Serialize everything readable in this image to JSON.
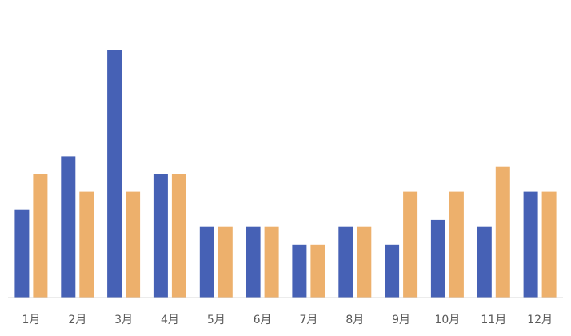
{
  "chart_data": {
    "type": "bar",
    "title": "",
    "xlabel": "",
    "ylabel": "",
    "categories": [
      "1月",
      "2月",
      "3月",
      "4月",
      "5月",
      "6月",
      "7月",
      "8月",
      "9月",
      "10月",
      "11月",
      "12月"
    ],
    "series": [
      {
        "values": [
          5,
          8,
          14,
          7,
          4,
          4,
          3,
          4,
          3,
          4.4,
          4,
          6
        ],
        "color": "#4661B5"
      },
      {
        "values": [
          7,
          6,
          6,
          7,
          4,
          4,
          3,
          4,
          6,
          6,
          7.4,
          6
        ],
        "color": "#EDB06C"
      }
    ],
    "ylim": [
      0,
      14.5
    ],
    "grid": false,
    "legend": "none",
    "axis_color": "#D9D9D9"
  }
}
